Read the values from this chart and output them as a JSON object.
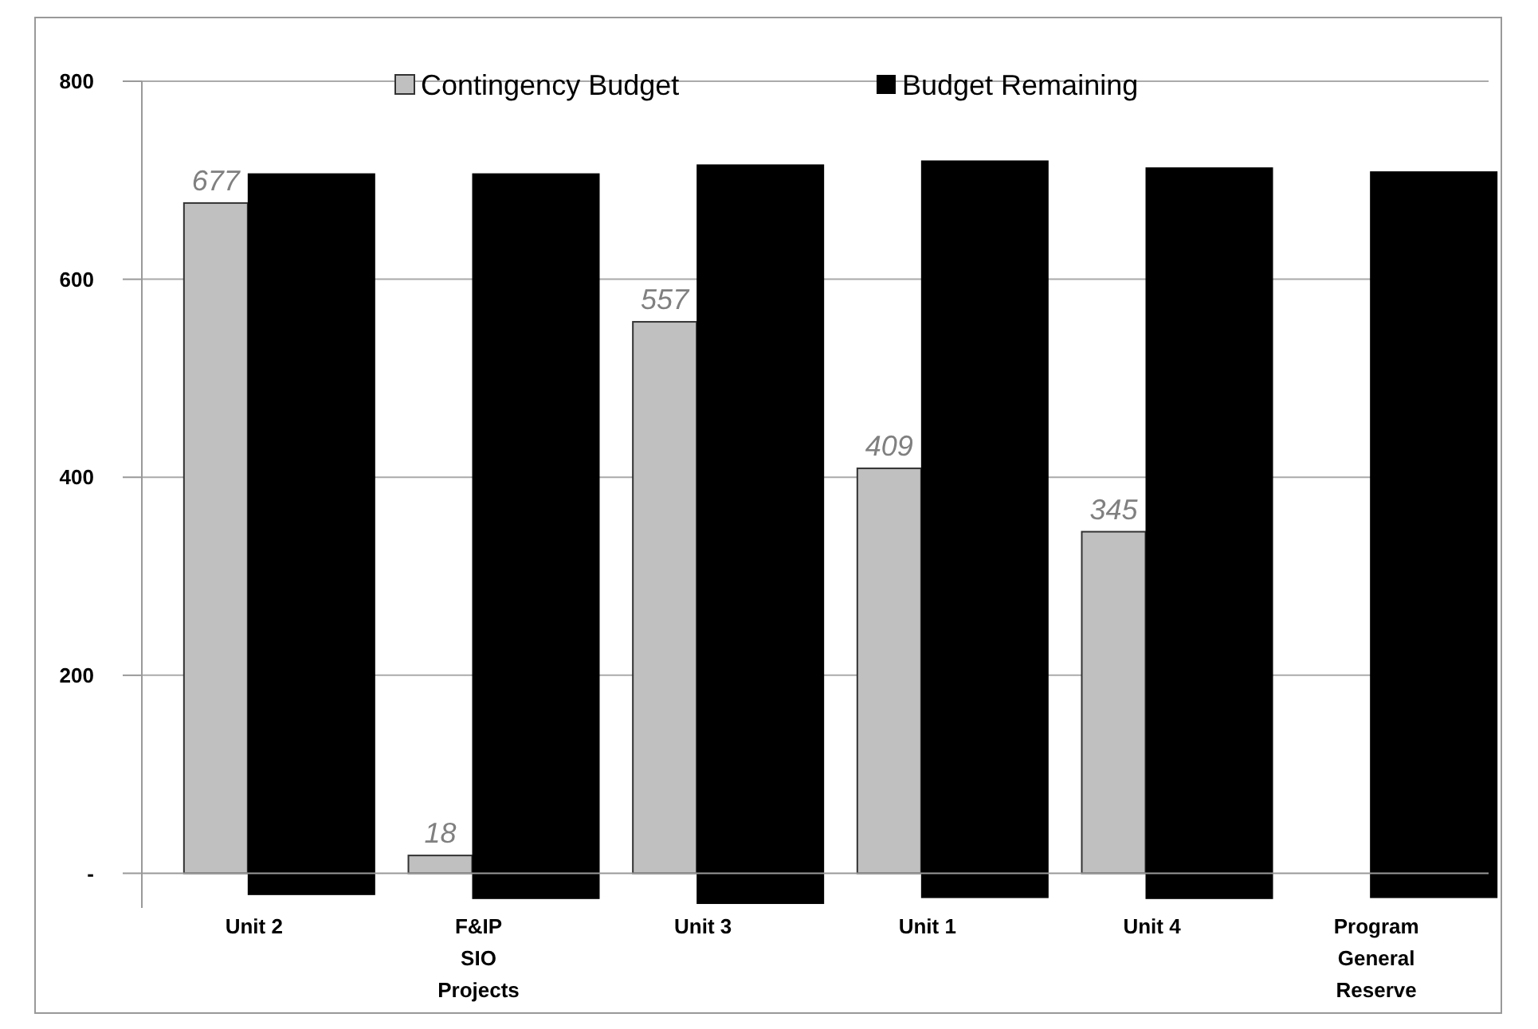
{
  "chart_data": {
    "type": "bar",
    "categories": [
      "Unit 2",
      "F&IP\nSIO\nProjects",
      "Unit 3",
      "Unit 1",
      "Unit 4",
      "Program\nGeneral\nReserve"
    ],
    "series": [
      {
        "name": "Contingency Budget",
        "color": "#c0c0c0",
        "values": [
          677,
          18,
          557,
          409,
          345,
          null
        ],
        "value_labels": [
          "677",
          "18",
          "557",
          "409",
          "345",
          null
        ]
      },
      {
        "name": "Budget Remaining",
        "color": "#000000",
        "values": [
          729,
          733,
          747,
          745,
          739,
          734
        ],
        "base": [
          -22,
          -26,
          -31,
          -25,
          -26,
          -25
        ]
      }
    ],
    "ylim": [
      -35,
      800
    ],
    "yticks": [
      {
        "value": 0,
        "label": "-"
      },
      200,
      400,
      600,
      800
    ],
    "grid": "y",
    "legend": "top"
  }
}
